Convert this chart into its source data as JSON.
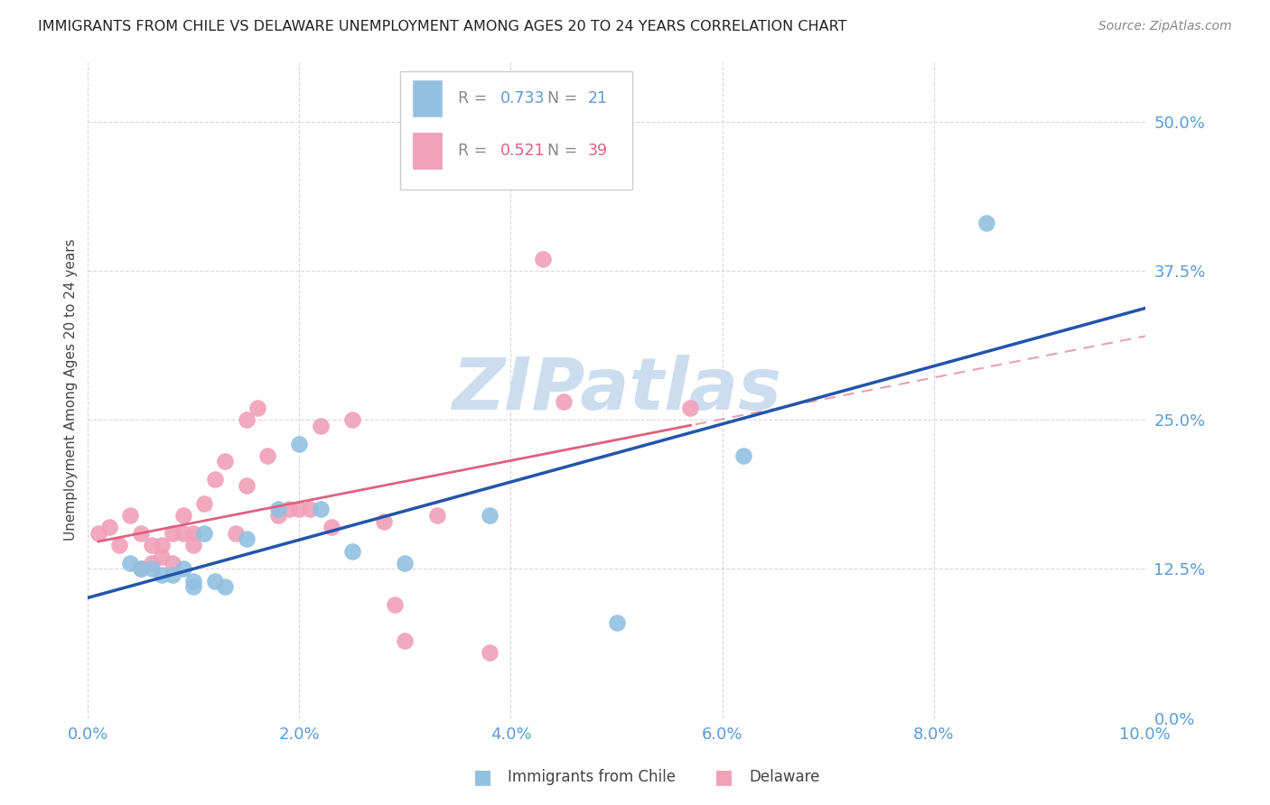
{
  "title": "IMMIGRANTS FROM CHILE VS DELAWARE UNEMPLOYMENT AMONG AGES 20 TO 24 YEARS CORRELATION CHART",
  "source": "Source: ZipAtlas.com",
  "ylabel": "Unemployment Among Ages 20 to 24 years",
  "legend_label_1": "Immigrants from Chile",
  "legend_label_2": "Delaware",
  "r1": 0.733,
  "n1": 21,
  "r2": 0.521,
  "n2": 39,
  "xmin": 0.0,
  "xmax": 0.1,
  "ymin": 0.0,
  "ymax": 0.55,
  "yticks": [
    0.0,
    0.125,
    0.25,
    0.375,
    0.5
  ],
  "xticks": [
    0.0,
    0.02,
    0.04,
    0.06,
    0.08,
    0.1
  ],
  "blue_x": [
    0.004,
    0.005,
    0.006,
    0.007,
    0.008,
    0.009,
    0.01,
    0.01,
    0.011,
    0.012,
    0.013,
    0.015,
    0.018,
    0.02,
    0.022,
    0.025,
    0.03,
    0.038,
    0.05,
    0.062,
    0.085
  ],
  "blue_y": [
    0.13,
    0.125,
    0.125,
    0.12,
    0.12,
    0.125,
    0.115,
    0.11,
    0.155,
    0.115,
    0.11,
    0.15,
    0.175,
    0.23,
    0.175,
    0.14,
    0.13,
    0.17,
    0.08,
    0.22,
    0.415
  ],
  "pink_x": [
    0.001,
    0.002,
    0.003,
    0.004,
    0.005,
    0.005,
    0.006,
    0.006,
    0.007,
    0.007,
    0.008,
    0.008,
    0.009,
    0.009,
    0.01,
    0.01,
    0.011,
    0.012,
    0.013,
    0.014,
    0.015,
    0.015,
    0.016,
    0.017,
    0.018,
    0.019,
    0.02,
    0.021,
    0.022,
    0.023,
    0.025,
    0.028,
    0.029,
    0.03,
    0.033,
    0.038,
    0.043,
    0.045,
    0.057
  ],
  "pink_y": [
    0.155,
    0.16,
    0.145,
    0.17,
    0.125,
    0.155,
    0.145,
    0.13,
    0.135,
    0.145,
    0.13,
    0.155,
    0.155,
    0.17,
    0.145,
    0.155,
    0.18,
    0.2,
    0.215,
    0.155,
    0.195,
    0.25,
    0.26,
    0.22,
    0.17,
    0.175,
    0.175,
    0.175,
    0.245,
    0.16,
    0.25,
    0.165,
    0.095,
    0.065,
    0.17,
    0.055,
    0.385,
    0.265,
    0.26
  ],
  "color_blue": "#92c0e0",
  "color_pink": "#f0a0b8",
  "color_blue_line": "#2255aa",
  "color_pink_line_solid": "#e06080",
  "color_pink_line_dashed": "#e8a0b0",
  "color_axis_labels": "#5b9bd5",
  "color_title": "#222222",
  "color_source": "#888888",
  "watermark_color": "#ccddf0",
  "background_color": "#ffffff",
  "grid_color": "#d8d8d8"
}
